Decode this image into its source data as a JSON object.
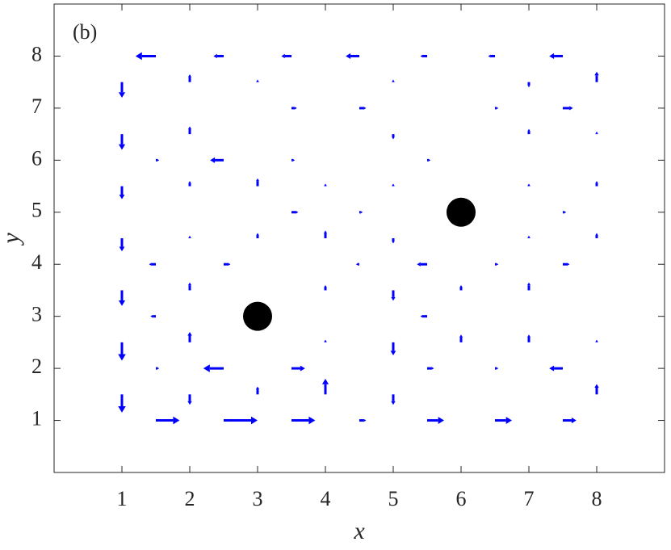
{
  "chart_data": {
    "type": "quiver",
    "annotation": "(b)",
    "xlabel": "x",
    "ylabel": "y",
    "xlim": [
      0,
      9
    ],
    "ylim": [
      0,
      9
    ],
    "xticks": [
      1,
      2,
      3,
      4,
      5,
      6,
      7,
      8
    ],
    "yticks": [
      1,
      2,
      3,
      4,
      5,
      6,
      7,
      8
    ],
    "color": "#0000ff",
    "x": [
      1.5,
      2.5,
      3.5,
      4.5,
      5.5,
      6.5,
      7.5,
      1,
      1,
      1,
      1,
      1,
      1,
      1,
      1.5,
      2.5,
      3.5,
      4.5,
      5.5,
      6.5,
      7.5,
      8,
      8,
      8,
      8,
      8,
      8,
      2,
      2,
      2,
      2,
      2,
      2,
      2,
      1.5,
      1.5,
      1.5,
      1.5,
      2.5,
      2.5,
      2.5,
      3,
      3,
      3,
      3,
      3.5,
      3.5,
      3.5,
      3.5,
      4,
      4,
      4,
      4,
      4,
      4.5,
      4.5,
      4.5,
      5,
      5,
      5,
      5,
      5,
      5,
      5,
      5.5,
      5.5,
      5.5,
      5.5,
      6,
      6,
      6.5,
      6.5,
      6.5,
      7,
      7,
      7,
      7,
      7,
      7,
      7.5,
      7.5,
      7.5,
      7.5
    ],
    "y": [
      8,
      8,
      8,
      8,
      8,
      8,
      8,
      7.5,
      6.5,
      5.5,
      4.5,
      3.5,
      2.5,
      1.5,
      1,
      1,
      1,
      1,
      1,
      1,
      1,
      1.5,
      2.5,
      4.5,
      5.5,
      6.5,
      7.5,
      7.5,
      6.5,
      5.5,
      4.5,
      3.5,
      2.5,
      1.5,
      6,
      4,
      3,
      2,
      6,
      4,
      2,
      7.5,
      5.5,
      4.5,
      1.5,
      7,
      6,
      5,
      2,
      5.5,
      4.5,
      3.5,
      2.5,
      1.5,
      7,
      5,
      4,
      7.5,
      6.5,
      5.5,
      4.5,
      3.5,
      2.5,
      1.5,
      6,
      4,
      3,
      2,
      3.5,
      2.5,
      7,
      4,
      2,
      7.5,
      6.5,
      5.5,
      4.5,
      3.5,
      2.5,
      7,
      5,
      4,
      2
    ],
    "u": [
      -0.3,
      -0.15,
      -0.15,
      -0.2,
      -0.1,
      -0.1,
      -0.2,
      0,
      0,
      0,
      0,
      0,
      0,
      0,
      0.35,
      0.5,
      0.35,
      0.1,
      0.25,
      0.25,
      0.2,
      0,
      0,
      0,
      0,
      0,
      0,
      0,
      0,
      0,
      0,
      0,
      0,
      0,
      0.05,
      -0.1,
      -0.08,
      0.05,
      -0.2,
      0.1,
      -0.3,
      0,
      0,
      0,
      0,
      0.08,
      0.05,
      0.1,
      0.2,
      0,
      0,
      0,
      0,
      0,
      0.1,
      0.05,
      -0.05,
      0,
      0,
      0,
      0,
      0,
      0,
      0,
      0.05,
      -0.15,
      -0.1,
      0.1,
      0,
      0,
      0.05,
      0.05,
      0.05,
      0,
      0,
      0,
      0,
      0,
      0,
      0.15,
      0.05,
      0.1,
      -0.2
    ],
    "v": [
      0,
      0,
      0,
      0,
      0,
      0,
      0,
      -0.3,
      -0.3,
      -0.25,
      -0.25,
      -0.3,
      -0.35,
      -0.35,
      0,
      0,
      0,
      0,
      0,
      0,
      0,
      0.2,
      0.05,
      0.1,
      0.1,
      0.05,
      0.2,
      0.15,
      0.15,
      0.1,
      0.05,
      0.15,
      0.2,
      -0.2,
      0,
      0,
      0,
      0,
      0,
      0,
      0,
      0.05,
      0.15,
      0.1,
      0.15,
      0,
      0,
      0,
      0,
      0.05,
      0.15,
      0.1,
      0.05,
      0.3,
      0,
      0,
      0,
      0.05,
      -0.1,
      0.05,
      -0.1,
      -0.2,
      -0.25,
      -0.2,
      0,
      0,
      0,
      0,
      0.1,
      0.15,
      0,
      0,
      0,
      -0.1,
      0.1,
      0.05,
      0.05,
      0.15,
      0.15,
      0,
      0,
      0,
      0
    ],
    "markers": {
      "x": [
        3,
        6
      ],
      "y": [
        3,
        5
      ],
      "color": "#000000"
    }
  }
}
